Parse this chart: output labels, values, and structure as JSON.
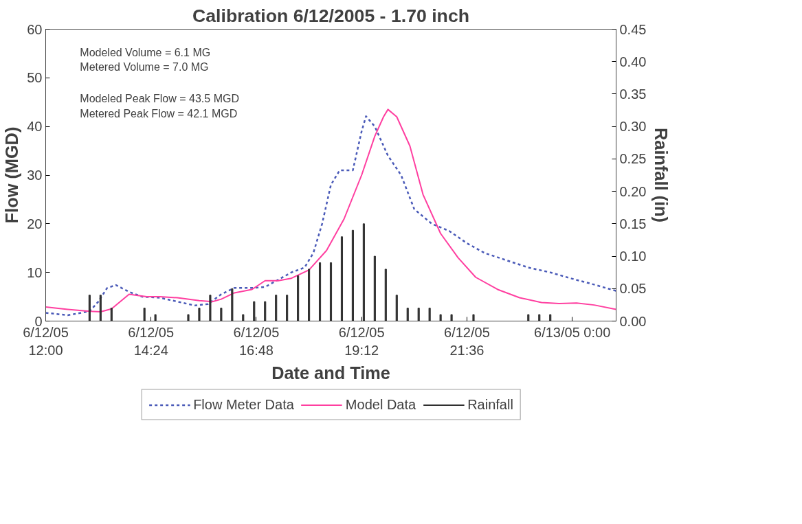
{
  "chart_data": {
    "type": "line",
    "title": "Calibration 6/12/2005 - 1.70 inch",
    "xlabel": "Date and Time",
    "ylabel": "Flow (MGD)",
    "y2label": "Rainfall (in)",
    "annotations": [
      "Modeled Volume = 6.1 MG",
      "Metered Volume = 7.0 MG",
      "Modeled Peak Flow = 43.5 MGD",
      "Metered Peak Flow = 42.1 MGD"
    ],
    "xlim": [
      "2005-06-12T12:00",
      "2005-06-13T01:00"
    ],
    "xticks": [
      {
        "value": "2005-06-12T12:00",
        "label": "6/12/05\n12:00"
      },
      {
        "value": "2005-06-12T14:24",
        "label": "6/12/05\n14:24"
      },
      {
        "value": "2005-06-12T16:48",
        "label": "6/12/05\n16:48"
      },
      {
        "value": "2005-06-12T19:12",
        "label": "6/12/05\n19:12"
      },
      {
        "value": "2005-06-12T21:36",
        "label": "6/12/05\n21:36"
      },
      {
        "value": "2005-06-13T00:00",
        "label": "6/13/05 0:00"
      }
    ],
    "ylim": [
      0,
      60
    ],
    "yticks": [
      0,
      10,
      20,
      30,
      40,
      50,
      60
    ],
    "y2lim": [
      0,
      0.45
    ],
    "y2ticks": [
      {
        "value": 0,
        "label": "0.00"
      },
      {
        "value": 0.05,
        "label": "0.05"
      },
      {
        "value": 0.1,
        "label": "0.10"
      },
      {
        "value": 0.15,
        "label": "0.15"
      },
      {
        "value": 0.2,
        "label": "0.20"
      },
      {
        "value": 0.25,
        "label": "0.25"
      },
      {
        "value": 0.3,
        "label": "0.30"
      },
      {
        "value": 0.35,
        "label": "0.35"
      },
      {
        "value": 0.4,
        "label": "0.40"
      },
      {
        "value": 0.45,
        "label": "0.45"
      }
    ],
    "grid": false,
    "legend": "bottom",
    "series": [
      {
        "name": "Flow Meter Data",
        "line_style": "dotted",
        "color": "#4a5ab8",
        "x": [
          "2005-06-12T12:00",
          "2005-06-12T12:30",
          "2005-06-12T13:00",
          "2005-06-12T13:12",
          "2005-06-12T13:24",
          "2005-06-12T13:36",
          "2005-06-12T13:54",
          "2005-06-12T14:12",
          "2005-06-12T14:36",
          "2005-06-12T15:00",
          "2005-06-12T15:24",
          "2005-06-12T15:42",
          "2005-06-12T16:00",
          "2005-06-12T16:18",
          "2005-06-12T16:42",
          "2005-06-12T17:00",
          "2005-06-12T17:18",
          "2005-06-12T17:36",
          "2005-06-12T17:54",
          "2005-06-12T18:06",
          "2005-06-12T18:18",
          "2005-06-12T18:30",
          "2005-06-12T18:42",
          "2005-06-12T19:00",
          "2005-06-12T19:12",
          "2005-06-12T19:18",
          "2005-06-12T19:30",
          "2005-06-12T19:48",
          "2005-06-12T20:06",
          "2005-06-12T20:24",
          "2005-06-12T20:48",
          "2005-06-12T21:12",
          "2005-06-12T21:36",
          "2005-06-12T22:00",
          "2005-06-12T22:30",
          "2005-06-12T23:00",
          "2005-06-12T23:30",
          "2005-06-13T00:00",
          "2005-06-13T00:30",
          "2005-06-13T01:00"
        ],
        "values": [
          1.7,
          1.2,
          2,
          4,
          6.8,
          7.4,
          6,
          5,
          4.8,
          4,
          3.2,
          3.5,
          5.5,
          6.8,
          6.8,
          7,
          8.5,
          10,
          11,
          14,
          20,
          28,
          31,
          31,
          39,
          42.1,
          40,
          34,
          30,
          23,
          20,
          18.5,
          16,
          14,
          12.5,
          11,
          10,
          8.7,
          7.5,
          6.2
        ]
      },
      {
        "name": "Model Data",
        "line_style": "solid",
        "color": "#ff3fa0",
        "x": [
          "2005-06-12T12:00",
          "2005-06-12T12:30",
          "2005-06-12T13:00",
          "2005-06-12T13:15",
          "2005-06-12T13:30",
          "2005-06-12T13:54",
          "2005-06-12T14:18",
          "2005-06-12T14:36",
          "2005-06-12T15:00",
          "2005-06-12T15:30",
          "2005-06-12T15:48",
          "2005-06-12T16:00",
          "2005-06-12T16:18",
          "2005-06-12T16:42",
          "2005-06-12T17:00",
          "2005-06-12T17:18",
          "2005-06-12T17:36",
          "2005-06-12T18:00",
          "2005-06-12T18:24",
          "2005-06-12T18:48",
          "2005-06-12T19:12",
          "2005-06-12T19:30",
          "2005-06-12T19:42",
          "2005-06-12T19:48",
          "2005-06-12T20:00",
          "2005-06-12T20:18",
          "2005-06-12T20:36",
          "2005-06-12T21:00",
          "2005-06-12T21:24",
          "2005-06-12T21:48",
          "2005-06-12T22:18",
          "2005-06-12T22:48",
          "2005-06-12T23:18",
          "2005-06-12T23:42",
          "2005-06-13T00:06",
          "2005-06-13T00:30",
          "2005-06-13T01:00"
        ],
        "values": [
          2.9,
          2.4,
          2,
          1.9,
          2.5,
          5.5,
          5,
          5,
          4.8,
          4.2,
          4,
          4.5,
          5.8,
          6.5,
          8.3,
          8.3,
          8.8,
          10.5,
          14.5,
          21,
          30,
          38,
          42,
          43.5,
          42,
          36,
          26,
          18,
          13,
          9,
          6.5,
          4.8,
          3.8,
          3.6,
          3.7,
          3.3,
          2.4
        ]
      },
      {
        "name": "Rainfall",
        "type": "bar",
        "axis": "y2",
        "color": "#303030",
        "x": [
          "2005-06-12T13:00",
          "2005-06-12T13:15",
          "2005-06-12T13:30",
          "2005-06-12T14:15",
          "2005-06-12T14:30",
          "2005-06-12T15:15",
          "2005-06-12T15:30",
          "2005-06-12T15:45",
          "2005-06-12T16:00",
          "2005-06-12T16:15",
          "2005-06-12T16:30",
          "2005-06-12T16:45",
          "2005-06-12T17:00",
          "2005-06-12T17:15",
          "2005-06-12T17:30",
          "2005-06-12T17:45",
          "2005-06-12T18:00",
          "2005-06-12T18:15",
          "2005-06-12T18:30",
          "2005-06-12T18:45",
          "2005-06-12T19:00",
          "2005-06-12T19:15",
          "2005-06-12T19:30",
          "2005-06-12T19:45",
          "2005-06-12T20:00",
          "2005-06-12T20:15",
          "2005-06-12T20:30",
          "2005-06-12T20:45",
          "2005-06-12T21:00",
          "2005-06-12T21:15",
          "2005-06-12T21:45",
          "2005-06-12T23:00",
          "2005-06-12T23:15",
          "2005-06-12T23:30"
        ],
        "values": [
          0.04,
          0.04,
          0.02,
          0.02,
          0.01,
          0.01,
          0.02,
          0.04,
          0.02,
          0.05,
          0.01,
          0.03,
          0.03,
          0.04,
          0.04,
          0.07,
          0.08,
          0.09,
          0.09,
          0.13,
          0.14,
          0.15,
          0.1,
          0.08,
          0.04,
          0.02,
          0.02,
          0.02,
          0.01,
          0.01,
          0.01,
          0.01,
          0.01,
          0.01
        ]
      }
    ]
  }
}
